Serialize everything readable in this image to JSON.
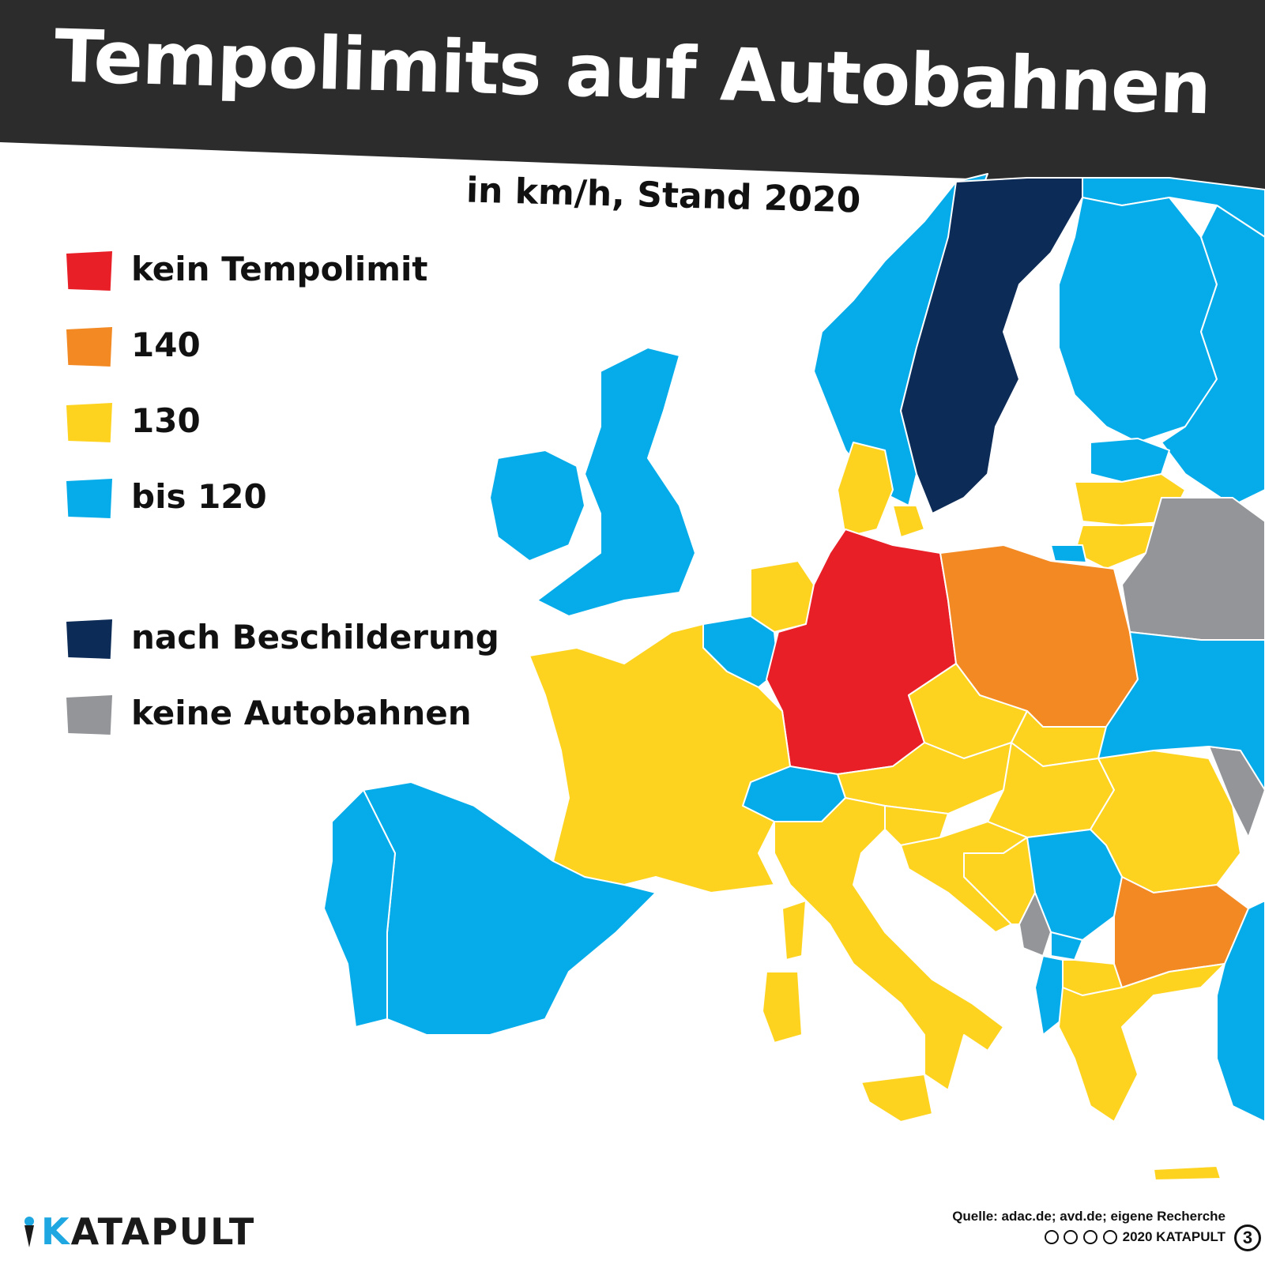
{
  "title": "Tempolimits auf Autobahnen",
  "subtitle": "in km/h, Stand 2020",
  "legend": [
    {
      "label": "kein Tempolimit",
      "color": "#e81f27"
    },
    {
      "label": "140",
      "color": "#f28923"
    },
    {
      "label": "130",
      "color": "#fdd31f"
    },
    {
      "label": "bis 120",
      "color": "#06acea"
    },
    {
      "label": "nach Beschilderung",
      "color": "#0c2b57"
    },
    {
      "label": "keine Autobahnen",
      "color": "#939598"
    }
  ],
  "colors": {
    "header": "#2c2c2c",
    "none": "#e81f27",
    "c140": "#f28923",
    "c130": "#fdd31f",
    "c120": "#06acea",
    "signs": "#0c2b57",
    "nohighway": "#939598",
    "brand": "#1ea7e1"
  },
  "logo": {
    "first": "K",
    "rest": "ATAPULT"
  },
  "source": {
    "line1": "Quelle: adac.de; avd.de; eigene Recherche",
    "line2": "2020 KATAPULT",
    "badge": "3"
  },
  "regions": [
    {
      "name": "Norwegen",
      "category": "bis 120"
    },
    {
      "name": "Schweden",
      "category": "nach Beschilderung"
    },
    {
      "name": "Finnland",
      "category": "bis 120"
    },
    {
      "name": "Vereinigtes Königreich",
      "category": "bis 120"
    },
    {
      "name": "Irland",
      "category": "bis 120"
    },
    {
      "name": "Dänemark",
      "category": "130"
    },
    {
      "name": "Niederlande",
      "category": "130"
    },
    {
      "name": "Belgien",
      "category": "bis 120"
    },
    {
      "name": "Deutschland",
      "category": "kein Tempolimit"
    },
    {
      "name": "Polen",
      "category": "140"
    },
    {
      "name": "Frankreich",
      "category": "130"
    },
    {
      "name": "Spanien",
      "category": "bis 120"
    },
    {
      "name": "Portugal",
      "category": "bis 120"
    },
    {
      "name": "Schweiz",
      "category": "bis 120"
    },
    {
      "name": "Italien",
      "category": "130"
    },
    {
      "name": "Österreich",
      "category": "130"
    },
    {
      "name": "Tschechien",
      "category": "130"
    },
    {
      "name": "Slowakei",
      "category": "130"
    },
    {
      "name": "Ungarn",
      "category": "130"
    },
    {
      "name": "Rumänien",
      "category": "130"
    },
    {
      "name": "Bulgarien",
      "category": "140"
    },
    {
      "name": "Belarus",
      "category": "keine Autobahnen"
    },
    {
      "name": "Moldau",
      "category": "keine Autobahnen"
    },
    {
      "name": "Montenegro",
      "category": "keine Autobahnen"
    },
    {
      "name": "Serbien",
      "category": "bis 120"
    },
    {
      "name": "Albanien",
      "category": "bis 120"
    },
    {
      "name": "Kroatien",
      "category": "130"
    },
    {
      "name": "Bosnien und Herzegowina",
      "category": "130"
    },
    {
      "name": "Slowenien",
      "category": "130"
    },
    {
      "name": "Griechenland",
      "category": "130"
    },
    {
      "name": "Nordmazedonien",
      "category": "130"
    },
    {
      "name": "Litauen",
      "category": "130"
    },
    {
      "name": "Lettland",
      "category": "130"
    },
    {
      "name": "Estland",
      "category": "bis 120"
    },
    {
      "name": "Türkei",
      "category": "bis 120"
    }
  ]
}
